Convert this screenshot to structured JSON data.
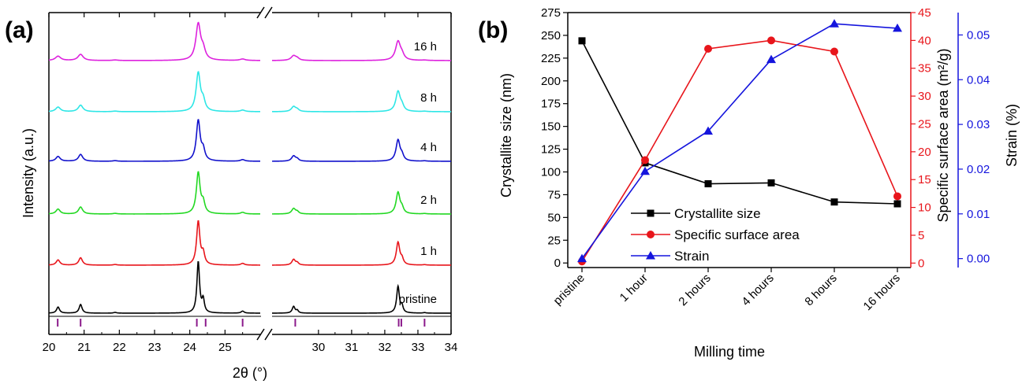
{
  "chart_data": [
    {
      "type": "line",
      "panel_label": "(a)",
      "xlabel": "2θ (°)",
      "ylabel": "Intensity (a.u.)",
      "axis_break": true,
      "segments": [
        {
          "xlim": [
            20,
            26
          ],
          "ticks": [
            "20",
            "21",
            "22",
            "23",
            "24",
            "25"
          ]
        },
        {
          "xlim": [
            28.6,
            34
          ],
          "ticks": [
            "30",
            "31",
            "32",
            "33",
            "34"
          ]
        }
      ],
      "peaks": [
        {
          "x": 20.26,
          "h": 0.12,
          "w": 0.05
        },
        {
          "x": 20.9,
          "h": 0.17,
          "w": 0.05
        },
        {
          "x": 21.88,
          "h": 0.015,
          "w": 0.05
        },
        {
          "x": 24.24,
          "h": 1.0,
          "w": 0.045
        },
        {
          "x": 24.38,
          "h": 0.25,
          "w": 0.04
        },
        {
          "x": 25.5,
          "h": 0.04,
          "w": 0.05
        },
        {
          "x": 29.25,
          "h": 0.13,
          "w": 0.05
        },
        {
          "x": 29.36,
          "h": 0.05,
          "w": 0.04
        },
        {
          "x": 32.4,
          "h": 0.52,
          "w": 0.05
        },
        {
          "x": 32.52,
          "h": 0.12,
          "w": 0.04
        },
        {
          "x": 33.2,
          "h": 0.01,
          "w": 0.05
        }
      ],
      "series": [
        {
          "name": "pristine",
          "color": "#000000",
          "width_scale": 1.0,
          "amp_scale": 1.0
        },
        {
          "name": "1 h",
          "color": "#e8151b",
          "width_scale": 1.25,
          "amp_scale": 0.95
        },
        {
          "name": "2 h",
          "color": "#22d822",
          "width_scale": 1.4,
          "amp_scale": 0.95
        },
        {
          "name": "4 h",
          "color": "#1111cc",
          "width_scale": 1.45,
          "amp_scale": 0.95
        },
        {
          "name": "8 h",
          "color": "#2ee6e6",
          "width_scale": 1.6,
          "amp_scale": 0.95
        },
        {
          "name": "16 h",
          "color": "#dd22dd",
          "width_scale": 1.8,
          "amp_scale": 0.95
        }
      ],
      "reference_ticks": [
        20.25,
        20.9,
        24.2,
        24.45,
        25.5,
        29.3,
        32.42,
        32.5,
        33.2
      ],
      "reference_color": "#8b1a8b"
    },
    {
      "type": "line",
      "panel_label": "(b)",
      "xlabel": "Milling time",
      "categories": [
        "pristine",
        "1 hour",
        "2 hours",
        "4 hours",
        "8 hours",
        "16 hours"
      ],
      "series": [
        {
          "name": "Crystallite size",
          "color": "#000000",
          "marker": "square",
          "axis": "left",
          "values": [
            244,
            110,
            87,
            88,
            67,
            65
          ]
        },
        {
          "name": "Specific surface area",
          "color": "#e8151b",
          "marker": "circle",
          "axis": "right1",
          "values": [
            0.3,
            18.5,
            38.5,
            40,
            38,
            12
          ]
        },
        {
          "name": "Strain",
          "color": "#1515dd",
          "marker": "triangle",
          "axis": "right2",
          "values": [
            0.0,
            0.0195,
            0.0285,
            0.0445,
            0.0525,
            0.0515
          ]
        }
      ],
      "axes": {
        "left": {
          "label": "Crystallite size (nm)",
          "ylim": [
            -5,
            275
          ],
          "ticks": [
            "0",
            "25",
            "50",
            "75",
            "100",
            "125",
            "150",
            "175",
            "200",
            "225",
            "250",
            "275"
          ],
          "color": "#000000"
        },
        "right1": {
          "label": "Specific surface area (m²/g)",
          "ylim": [
            -0.8,
            45
          ],
          "ticks": [
            "0",
            "5",
            "10",
            "15",
            "20",
            "25",
            "30",
            "35",
            "40",
            "45"
          ],
          "color": "#e8151b"
        },
        "right2": {
          "label": "Strain (%)",
          "ylim": [
            -0.002,
            0.055
          ],
          "ticks": [
            "0.00",
            "0.01",
            "0.02",
            "0.03",
            "0.04",
            "0.05"
          ],
          "color": "#1515dd"
        }
      },
      "legend": "lower-center"
    }
  ]
}
